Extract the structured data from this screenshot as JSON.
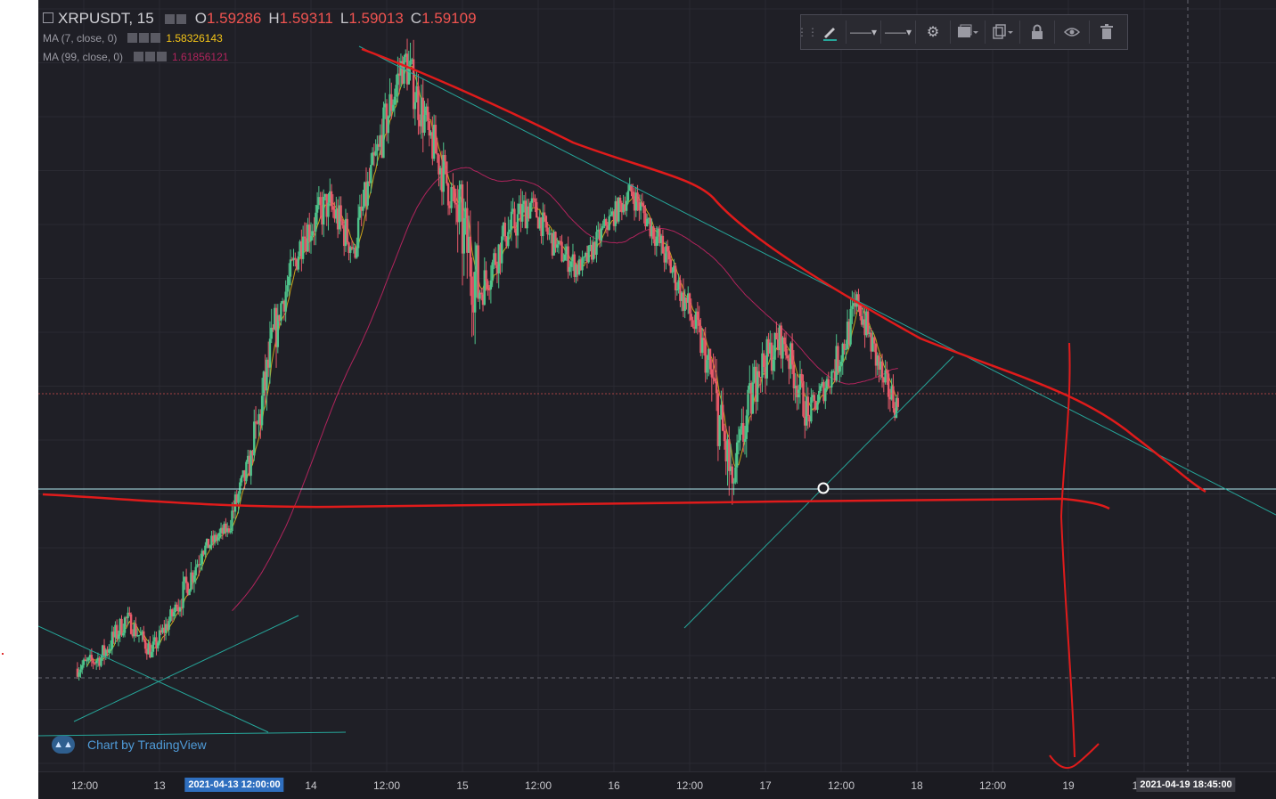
{
  "header": {
    "symbol": "XRPUSDT, 15",
    "open_label": "O",
    "open": "1.59286",
    "high_label": "H",
    "high": "1.59311",
    "low_label": "L",
    "low": "1.59013",
    "close_label": "C",
    "close": "1.59109"
  },
  "indicators": [
    {
      "label": "MA (7, close, 0)",
      "value": "1.58326143",
      "color": "#f5c518"
    },
    {
      "label": "MA (99, close, 0)",
      "value": "1.61856121",
      "color": "#b0245c"
    }
  ],
  "toolbar": {
    "icons": [
      "pencil-icon",
      "line-style-icon",
      "line-width-icon",
      "gear-icon",
      "fill-icon",
      "clone-icon",
      "lock-icon",
      "eye-icon",
      "trash-icon"
    ]
  },
  "time_axis": {
    "labels": [
      "12:00",
      "13",
      "14",
      "12:00",
      "15",
      "12:00",
      "16",
      "12:00",
      "17",
      "12:00",
      "18",
      "12:00",
      "19",
      "1"
    ],
    "crosshair_tag": "2021-04-13 12:00:00",
    "cursor_tag": "2021-04-19 18:45:00"
  },
  "watermark": {
    "text": "Chart by TradingView"
  },
  "colors": {
    "background": "#1f1f26",
    "up_candle": "#4ec48b",
    "down_candle": "#e85a6a",
    "trendline": "#26a69a",
    "annotation": "#e01b1b",
    "horizontal_line": "#b2ebf2"
  },
  "chart_data": {
    "type": "candlestick",
    "symbol": "XRPUSDT",
    "interval": "15",
    "x_type": "time",
    "x_range": [
      "2021-04-12",
      "2021-04-19"
    ],
    "series": [
      {
        "name": "XRPUSDT",
        "candles_approx": [
          {
            "t": "2021-04-12 10:00",
            "o": 1.385,
            "h": 1.41,
            "l": 1.365,
            "c": 1.395
          },
          {
            "t": "2021-04-12 14:00",
            "o": 1.395,
            "h": 1.44,
            "l": 1.38,
            "c": 1.43
          },
          {
            "t": "2021-04-12 18:00",
            "o": 1.43,
            "h": 1.44,
            "l": 1.39,
            "c": 1.4
          },
          {
            "t": "2021-04-12 22:00",
            "o": 1.4,
            "h": 1.445,
            "l": 1.395,
            "c": 1.44
          },
          {
            "t": "2021-04-13 02:00",
            "o": 1.44,
            "h": 1.5,
            "l": 1.43,
            "c": 1.49
          },
          {
            "t": "2021-04-13 06:00",
            "o": 1.49,
            "h": 1.52,
            "l": 1.48,
            "c": 1.51
          },
          {
            "t": "2021-04-13 10:00",
            "o": 1.51,
            "h": 1.58,
            "l": 1.505,
            "c": 1.575
          },
          {
            "t": "2021-04-13 14:00",
            "o": 1.575,
            "h": 1.71,
            "l": 1.57,
            "c": 1.7
          },
          {
            "t": "2021-04-13 18:00",
            "o": 1.7,
            "h": 1.78,
            "l": 1.69,
            "c": 1.77
          },
          {
            "t": "2021-04-13 22:00",
            "o": 1.77,
            "h": 1.82,
            "l": 1.72,
            "c": 1.8
          },
          {
            "t": "2021-04-14 02:00",
            "o": 1.8,
            "h": 1.84,
            "l": 1.74,
            "c": 1.76
          },
          {
            "t": "2021-04-14 06:00",
            "o": 1.76,
            "h": 1.86,
            "l": 1.75,
            "c": 1.85
          },
          {
            "t": "2021-04-14 10:00",
            "o": 1.85,
            "h": 1.96,
            "l": 1.84,
            "c": 1.93
          },
          {
            "t": "2021-04-14 14:00",
            "o": 1.93,
            "h": 1.965,
            "l": 1.84,
            "c": 1.86
          },
          {
            "t": "2021-04-14 18:00",
            "o": 1.86,
            "h": 1.88,
            "l": 1.76,
            "c": 1.8
          },
          {
            "t": "2021-04-14 22:00",
            "o": 1.8,
            "h": 1.82,
            "l": 1.6,
            "c": 1.72
          },
          {
            "t": "2021-04-15 02:00",
            "o": 1.72,
            "h": 1.8,
            "l": 1.7,
            "c": 1.77
          },
          {
            "t": "2021-04-15 06:00",
            "o": 1.77,
            "h": 1.84,
            "l": 1.74,
            "c": 1.8
          },
          {
            "t": "2021-04-15 10:00",
            "o": 1.8,
            "h": 1.82,
            "l": 1.75,
            "c": 1.76
          },
          {
            "t": "2021-04-15 14:00",
            "o": 1.76,
            "h": 1.79,
            "l": 1.72,
            "c": 1.74
          },
          {
            "t": "2021-04-15 18:00",
            "o": 1.74,
            "h": 1.79,
            "l": 1.73,
            "c": 1.78
          },
          {
            "t": "2021-04-15 22:00",
            "o": 1.78,
            "h": 1.83,
            "l": 1.77,
            "c": 1.81
          },
          {
            "t": "2021-04-16 02:00",
            "o": 1.81,
            "h": 1.82,
            "l": 1.75,
            "c": 1.77
          },
          {
            "t": "2021-04-16 06:00",
            "o": 1.77,
            "h": 1.78,
            "l": 1.7,
            "c": 1.72
          },
          {
            "t": "2021-04-16 10:00",
            "o": 1.72,
            "h": 1.74,
            "l": 1.64,
            "c": 1.66
          },
          {
            "t": "2021-04-16 14:00",
            "o": 1.66,
            "h": 1.67,
            "l": 1.5,
            "c": 1.55
          },
          {
            "t": "2021-04-16 18:00",
            "o": 1.55,
            "h": 1.66,
            "l": 1.53,
            "c": 1.65
          },
          {
            "t": "2021-04-16 22:00",
            "o": 1.65,
            "h": 1.73,
            "l": 1.63,
            "c": 1.68
          },
          {
            "t": "2021-04-17 02:00",
            "o": 1.68,
            "h": 1.69,
            "l": 1.59,
            "c": 1.61
          },
          {
            "t": "2021-04-17 06:00",
            "o": 1.61,
            "h": 1.67,
            "l": 1.6,
            "c": 1.65
          },
          {
            "t": "2021-04-17 10:00",
            "o": 1.65,
            "h": 1.74,
            "l": 1.64,
            "c": 1.71
          },
          {
            "t": "2021-04-17 14:00",
            "o": 1.71,
            "h": 1.72,
            "l": 1.63,
            "c": 1.64
          },
          {
            "t": "2021-04-17 18:00",
            "o": 1.64,
            "h": 1.66,
            "l": 1.58,
            "c": 1.6
          },
          {
            "t": "2021-04-17 22:00",
            "o": 1.6,
            "h": 1.615,
            "l": 1.585,
            "c": 1.591
          }
        ]
      },
      {
        "name": "MA (7, close, 0)",
        "last": 1.58326143
      },
      {
        "name": "MA (99, close, 0)",
        "last": 1.61856121
      }
    ],
    "horizontal_levels": [
      1.5911,
      1.573
    ],
    "grid": true,
    "legend_position": "top-left"
  }
}
